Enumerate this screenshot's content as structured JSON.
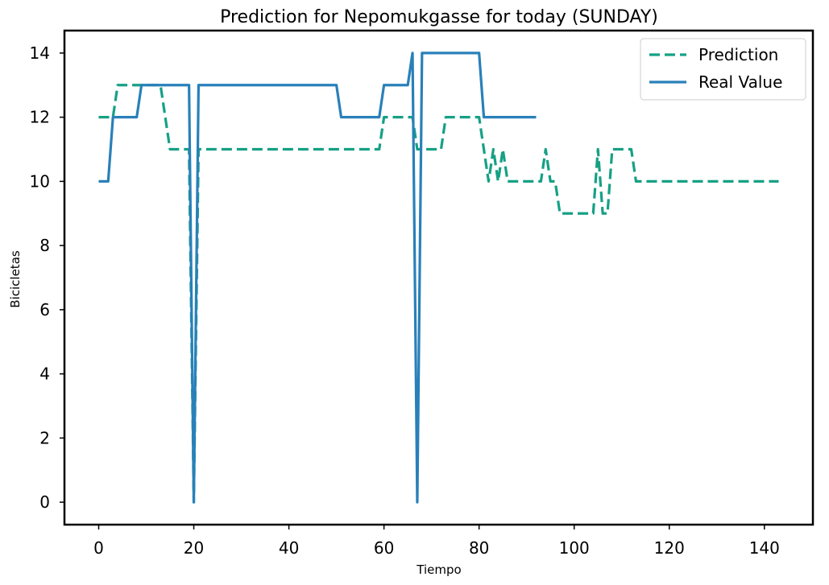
{
  "chart_data": {
    "type": "line",
    "title": "Prediction for Nepomukgasse for today (SUNDAY)",
    "xlabel": "Tiempo",
    "ylabel": "Bicicletas",
    "xlim": [
      -7.2,
      150.2
    ],
    "ylim": [
      -0.7,
      14.7
    ],
    "xticks": [
      0,
      20,
      40,
      60,
      80,
      100,
      120,
      140
    ],
    "yticks": [
      0,
      2,
      4,
      6,
      8,
      10,
      12,
      14
    ],
    "grid": false,
    "legend_position": "top-right",
    "series": [
      {
        "name": "Prediction",
        "style": "dashed",
        "color": "#16a085",
        "x": [
          0,
          1,
          2,
          3,
          4,
          5,
          6,
          7,
          8,
          9,
          10,
          11,
          12,
          13,
          14,
          15,
          16,
          17,
          18,
          19,
          20,
          21,
          22,
          23,
          24,
          25,
          26,
          27,
          28,
          29,
          30,
          31,
          32,
          33,
          34,
          35,
          36,
          37,
          38,
          39,
          40,
          41,
          42,
          43,
          44,
          45,
          46,
          47,
          48,
          49,
          50,
          51,
          52,
          53,
          54,
          55,
          56,
          57,
          58,
          59,
          60,
          61,
          62,
          63,
          64,
          65,
          66,
          67,
          68,
          69,
          70,
          71,
          72,
          73,
          74,
          75,
          76,
          77,
          78,
          79,
          80,
          81,
          82,
          83,
          84,
          85,
          86,
          87,
          88,
          89,
          90,
          91,
          92,
          93,
          94,
          95,
          96,
          97,
          98,
          99,
          100,
          101,
          102,
          103,
          104,
          105,
          106,
          107,
          108,
          109,
          110,
          111,
          112,
          113,
          114,
          115,
          116,
          117,
          118,
          119,
          120,
          121,
          122,
          123,
          124,
          125,
          126,
          127,
          128,
          129,
          130,
          131,
          132,
          133,
          134,
          135,
          136,
          137,
          138,
          139,
          140,
          141,
          142,
          143
        ],
        "y": [
          12,
          12,
          12,
          12,
          13,
          13,
          13,
          13,
          13,
          13,
          13,
          13,
          13,
          13,
          12,
          11,
          11,
          11,
          11,
          11,
          0,
          11,
          11,
          11,
          11,
          11,
          11,
          11,
          11,
          11,
          11,
          11,
          11,
          11,
          11,
          11,
          11,
          11,
          11,
          11,
          11,
          11,
          11,
          11,
          11,
          11,
          11,
          11,
          11,
          11,
          11,
          11,
          11,
          11,
          11,
          11,
          11,
          11,
          11,
          11,
          12,
          12,
          12,
          12,
          12,
          12,
          12,
          11,
          11,
          11,
          11,
          11,
          11,
          12,
          12,
          12,
          12,
          12,
          12,
          12,
          12,
          11,
          10,
          11,
          10,
          11,
          10,
          10,
          10,
          10,
          10,
          10,
          10,
          10,
          11,
          10,
          10,
          9,
          9,
          9,
          9,
          9,
          9,
          9,
          9,
          11,
          9,
          9,
          11,
          11,
          11,
          11,
          11,
          10,
          10,
          10,
          10,
          10,
          10,
          10,
          10,
          10,
          10,
          10,
          10,
          10,
          10,
          10,
          10,
          10,
          10,
          10,
          10,
          10,
          10,
          10,
          10,
          10,
          10,
          10,
          10,
          10,
          10,
          10
        ]
      },
      {
        "name": "Real Value",
        "style": "solid",
        "color": "#2980b9",
        "x": [
          0,
          1,
          2,
          3,
          4,
          5,
          6,
          7,
          8,
          9,
          10,
          11,
          12,
          13,
          14,
          15,
          16,
          17,
          18,
          19,
          20,
          21,
          22,
          23,
          24,
          25,
          26,
          27,
          28,
          29,
          30,
          31,
          32,
          33,
          34,
          35,
          36,
          37,
          38,
          39,
          40,
          41,
          42,
          43,
          44,
          45,
          46,
          47,
          48,
          49,
          50,
          51,
          52,
          53,
          54,
          55,
          56,
          57,
          58,
          59,
          60,
          61,
          62,
          63,
          64,
          65,
          66,
          67,
          68,
          69,
          70,
          71,
          72,
          73,
          74,
          75,
          76,
          77,
          78,
          79,
          80,
          81,
          82,
          83,
          84,
          85,
          86,
          87,
          88,
          89,
          90,
          91,
          92
        ],
        "y": [
          10,
          10,
          10,
          12,
          12,
          12,
          12,
          12,
          12,
          13,
          13,
          13,
          13,
          13,
          13,
          13,
          13,
          13,
          13,
          13,
          0,
          13,
          13,
          13,
          13,
          13,
          13,
          13,
          13,
          13,
          13,
          13,
          13,
          13,
          13,
          13,
          13,
          13,
          13,
          13,
          13,
          13,
          13,
          13,
          13,
          13,
          13,
          13,
          13,
          13,
          13,
          12,
          12,
          12,
          12,
          12,
          12,
          12,
          12,
          12,
          13,
          13,
          13,
          13,
          13,
          13,
          14,
          0,
          14,
          14,
          14,
          14,
          14,
          14,
          14,
          14,
          14,
          14,
          14,
          14,
          14,
          12,
          12,
          12,
          12,
          12,
          12,
          12,
          12,
          12,
          12,
          12,
          12
        ]
      }
    ]
  }
}
